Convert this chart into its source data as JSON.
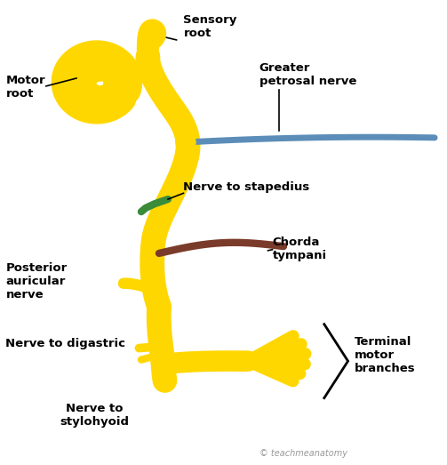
{
  "background_color": "#ffffff",
  "yellow": "#FFD700",
  "yellow_edge": "#C8A800",
  "blue": "#5B8DB8",
  "green": "#3A8C3A",
  "brown": "#7B3B2A",
  "black": "#000000",
  "labels": {
    "sensory_root": "Sensory\nroot",
    "motor_root": "Motor\nroot",
    "greater_petrosal": "Greater\npetrosal nerve",
    "nerve_stapedius": "Nerve to stapedius",
    "chorda_tympani": "Chorda\ntympani",
    "posterior_auricular": "Posterior\nauricular\nnerve",
    "nerve_digastric": "Nerve to digastric",
    "nerve_stylohyoid": "Nerve to\nstylohyoid",
    "terminal_motor": "Terminal\nmotor\nbranches",
    "copyright": "teachmeanatomy"
  },
  "font_size": 9.5,
  "lw_main": 20,
  "lw_branch": 10,
  "lw_thin": 7
}
